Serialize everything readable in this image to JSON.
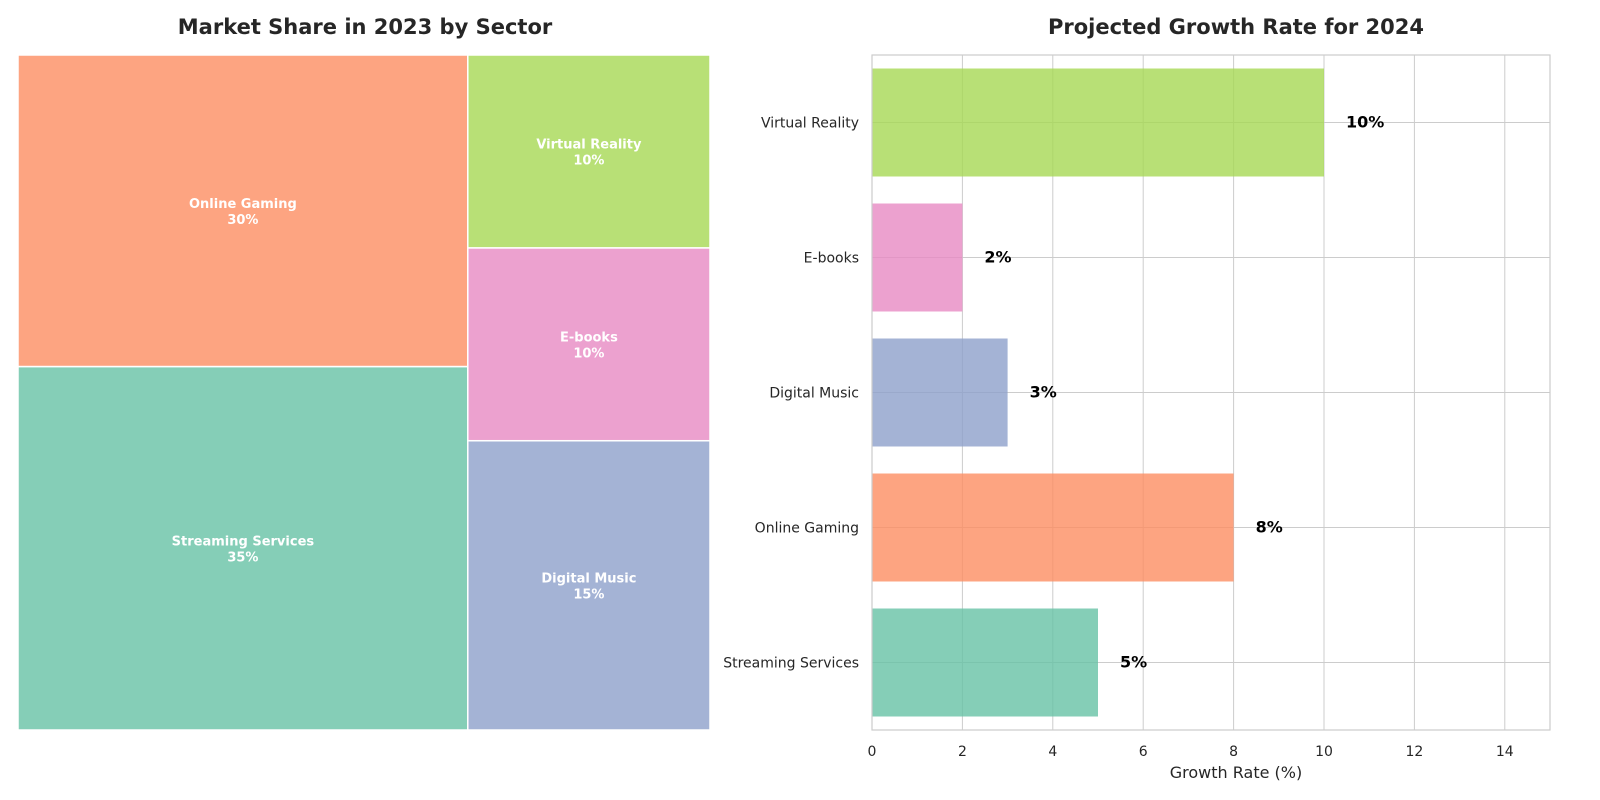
{
  "chart_data": [
    {
      "type": "treemap",
      "title": "Market Share in 2023 by Sector",
      "unit": "%",
      "items": [
        {
          "name": "Streaming Services",
          "value": 35,
          "label": "35%",
          "color": "#66c2a5"
        },
        {
          "name": "Online Gaming",
          "value": 30,
          "label": "30%",
          "color": "#fc8d62"
        },
        {
          "name": "Digital Music",
          "value": 15,
          "label": "15%",
          "color": "#8da0cb"
        },
        {
          "name": "E-books",
          "value": 10,
          "label": "10%",
          "color": "#e78ac3"
        },
        {
          "name": "Virtual Reality",
          "value": 10,
          "label": "10%",
          "color": "#a6d854"
        }
      ]
    },
    {
      "type": "bar",
      "orientation": "horizontal",
      "title": "Projected Growth Rate for 2024",
      "xlabel": "Growth Rate (%)",
      "ylabel": "",
      "xlim": [
        0,
        15
      ],
      "xticks": [
        0,
        2,
        4,
        6,
        8,
        10,
        12,
        14
      ],
      "grid": true,
      "categories": [
        "Streaming Services",
        "Online Gaming",
        "Digital Music",
        "E-books",
        "Virtual Reality"
      ],
      "values": [
        5,
        8,
        3,
        2,
        10
      ],
      "data_labels": [
        "5%",
        "8%",
        "3%",
        "2%",
        "10%"
      ],
      "colors": [
        "#66c2a5",
        "#fc8d62",
        "#8da0cb",
        "#e78ac3",
        "#a6d854"
      ]
    }
  ]
}
